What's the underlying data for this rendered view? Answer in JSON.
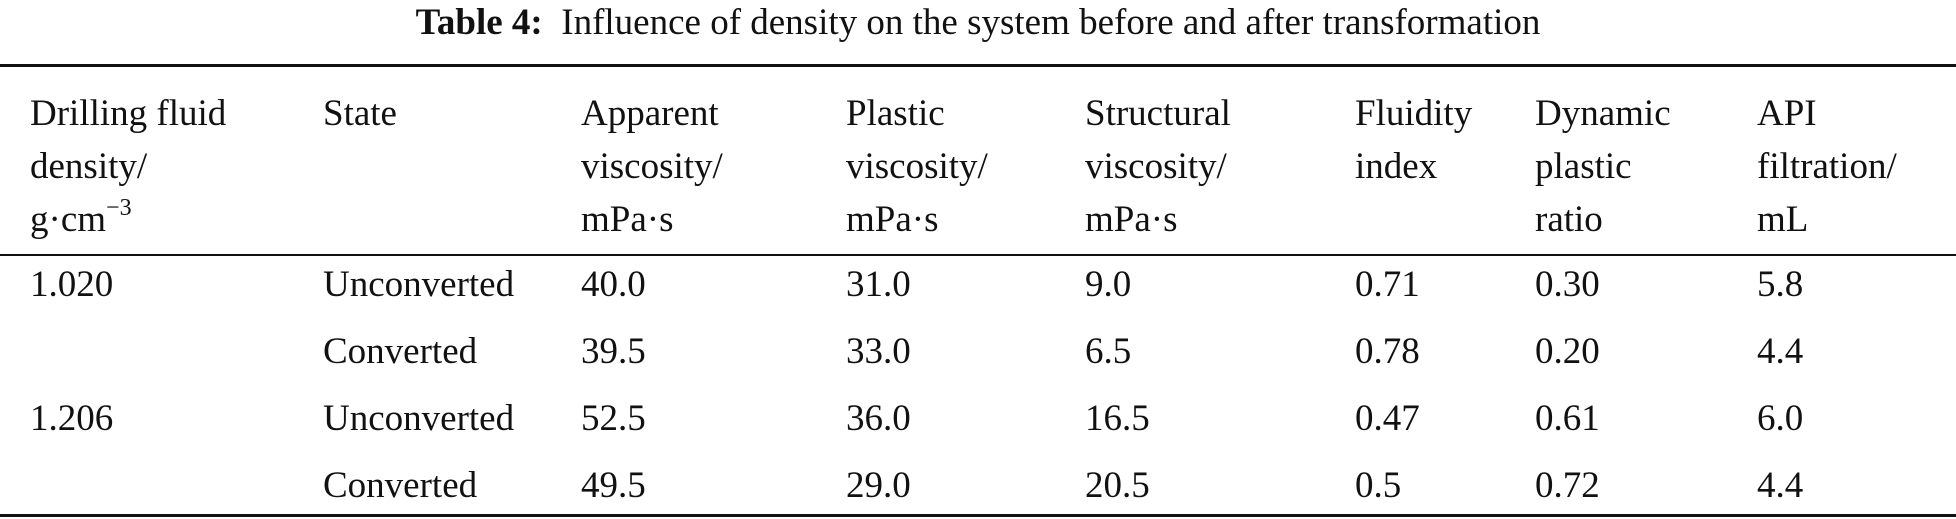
{
  "caption": {
    "label": "Table 4:",
    "text": "Influence of density on the system before and after transformation"
  },
  "table": {
    "headers": [
      {
        "lines": [
          "Drilling fluid",
          "density/",
          "g·cm"
        ],
        "sup": "−3"
      },
      {
        "lines": [
          "State"
        ]
      },
      {
        "lines": [
          "Apparent",
          "viscosity/",
          "mPa·s"
        ]
      },
      {
        "lines": [
          "Plastic",
          "viscosity/",
          "mPa·s"
        ]
      },
      {
        "lines": [
          "Structural",
          "viscosity/",
          "mPa·s"
        ]
      },
      {
        "lines": [
          "Fluidity",
          "index"
        ]
      },
      {
        "lines": [
          "Dynamic",
          "plastic",
          "ratio"
        ]
      },
      {
        "lines": [
          "API",
          "filtration/",
          "mL"
        ]
      }
    ],
    "rows": [
      [
        "1.020",
        "Unconverted",
        "40.0",
        "31.0",
        "9.0",
        "0.71",
        "0.30",
        "5.8"
      ],
      [
        "",
        "Converted",
        "39.5",
        "33.0",
        "6.5",
        "0.78",
        "0.20",
        "4.4"
      ],
      [
        "1.206",
        "Unconverted",
        "52.5",
        "36.0",
        "16.5",
        "0.47",
        "0.61",
        "6.0"
      ],
      [
        "",
        "Converted",
        "49.5",
        "29.0",
        "20.5",
        "0.5",
        "0.72",
        "4.4"
      ]
    ]
  }
}
